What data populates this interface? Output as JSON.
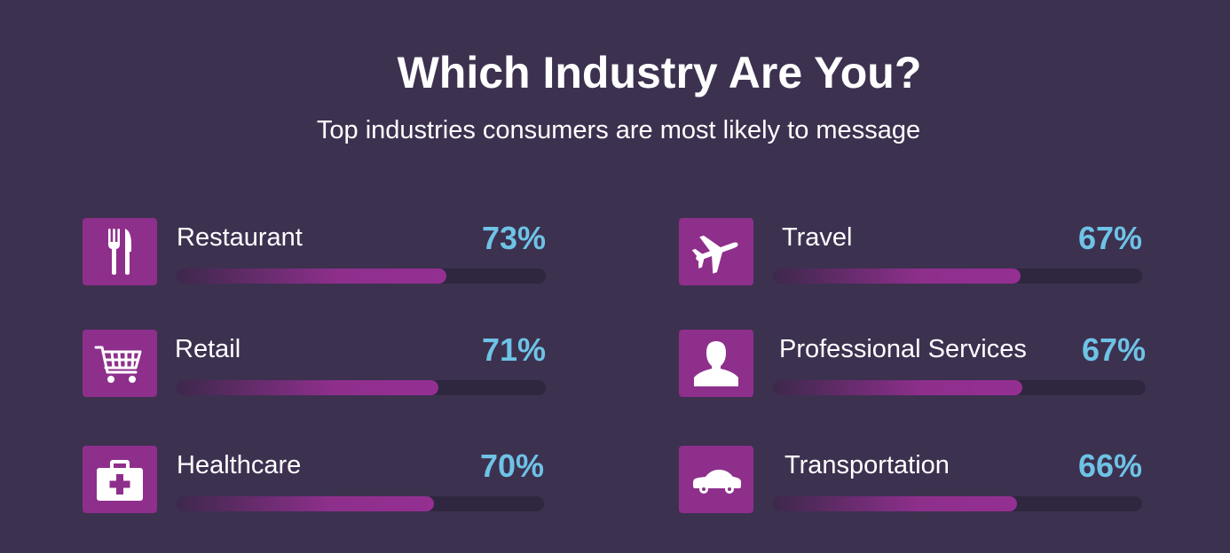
{
  "title": "Which Industry Are You?",
  "subtitle": "Top industries consumers are most likely to message",
  "colors": {
    "background": "#3d3150",
    "accent": "#8e2f8c",
    "percent_text": "#6ec3e6",
    "track": "#2f2740"
  },
  "chart_data": {
    "type": "bar",
    "orientation": "horizontal",
    "title": "Which Industry Are You?",
    "subtitle": "Top industries consumers are most likely to message",
    "xlim": [
      0,
      100
    ],
    "grid": false,
    "categories": [
      "Restaurant",
      "Retail",
      "Healthcare",
      "Travel",
      "Professional Services",
      "Transportation"
    ],
    "values": [
      73,
      71,
      70,
      67,
      67,
      66
    ],
    "value_labels": [
      "73%",
      "71%",
      "70%",
      "67%",
      "67%",
      "66%"
    ],
    "icons": [
      "fork-knife-icon",
      "shopping-cart-icon",
      "medical-kit-icon",
      "airplane-icon",
      "person-icon",
      "car-icon"
    ]
  }
}
